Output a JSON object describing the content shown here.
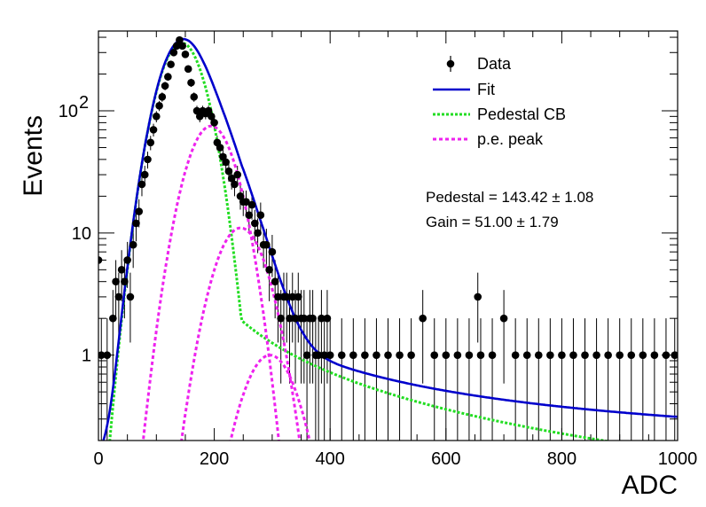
{
  "chart_data": {
    "type": "scatter",
    "xlabel": "ADC",
    "ylabel": "Events",
    "xlim": [
      0,
      1000
    ],
    "ylim": [
      0.2,
      450
    ],
    "yscale": "log",
    "x_ticks": [
      {
        "value": 0,
        "label": "0"
      },
      {
        "value": 200,
        "label": "200"
      },
      {
        "value": 400,
        "label": "400"
      },
      {
        "value": 600,
        "label": "600"
      },
      {
        "value": 800,
        "label": "800"
      },
      {
        "value": 1000,
        "label": "1000"
      }
    ],
    "y_ticks": [
      {
        "value": 1,
        "label": "1"
      },
      {
        "value": 10,
        "label": "10"
      },
      {
        "value": 100,
        "label": "10",
        "exponent": "2"
      }
    ],
    "legend_position": "top-right",
    "legend": [
      {
        "label": "Data",
        "key": "data"
      },
      {
        "label": "Fit",
        "key": "fit"
      },
      {
        "label": "Pedestal CB",
        "key": "pedestal"
      },
      {
        "label": "p.e. peak",
        "key": "pe"
      }
    ],
    "annotations": {
      "pedestal": "Pedestal = 143.42 ± 1.08",
      "gain": "Gain = 51.00 ± 1.79"
    },
    "colors": {
      "data": "#000000",
      "fit": "#0000cc",
      "pedestal": "#22dd22",
      "pe": "#ee22ee"
    },
    "data_points": {
      "x": [
        0,
        5,
        15,
        25,
        30,
        35,
        40,
        45,
        50,
        55,
        60,
        65,
        70,
        75,
        80,
        85,
        90,
        95,
        100,
        105,
        110,
        115,
        120,
        125,
        130,
        135,
        140,
        145,
        150,
        155,
        160,
        165,
        170,
        175,
        180,
        185,
        190,
        195,
        200,
        205,
        210,
        215,
        220,
        225,
        230,
        235,
        240,
        245,
        250,
        255,
        260,
        265,
        270,
        275,
        280,
        285,
        290,
        295,
        300,
        305,
        310,
        315,
        320,
        325,
        330,
        335,
        340,
        345,
        350,
        355,
        360,
        365,
        370,
        375,
        380,
        385,
        390,
        395,
        400,
        420,
        440,
        460,
        480,
        500,
        520,
        540,
        560,
        580,
        600,
        620,
        640,
        655,
        660,
        680,
        700,
        720,
        740,
        760,
        780,
        800,
        820,
        840,
        860,
        880,
        900,
        920,
        940,
        960,
        980,
        995
      ],
      "y": [
        6,
        1,
        1,
        2,
        4,
        3,
        5,
        4,
        6,
        3,
        8,
        12,
        15,
        25,
        30,
        40,
        55,
        70,
        90,
        110,
        130,
        160,
        190,
        240,
        300,
        340,
        380,
        340,
        290,
        220,
        170,
        130,
        100,
        90,
        100,
        95,
        100,
        90,
        80,
        55,
        50,
        42,
        38,
        32,
        28,
        25,
        30,
        20,
        18,
        18,
        14,
        17,
        12,
        10,
        14,
        8,
        8,
        5,
        7,
        4,
        3,
        2,
        3,
        3,
        2,
        3,
        2,
        3,
        2,
        2,
        1,
        2,
        2,
        1,
        1,
        2,
        1,
        2,
        1,
        1,
        1,
        1,
        1,
        1,
        1,
        1,
        2,
        1,
        1,
        1,
        1,
        3,
        1,
        1,
        2,
        1,
        1,
        1,
        1,
        1,
        1,
        1,
        1,
        1,
        1,
        1,
        1,
        1,
        1,
        1
      ]
    },
    "model": {
      "pedestal_mean": 143.42,
      "pedestal_amplitude": 360,
      "pedestal_sigma": 32,
      "pedestal_tail": 0.03,
      "gain": 51.0,
      "pe_peaks": [
        {
          "mean": 194.4,
          "amplitude": 75,
          "sigma": 34
        },
        {
          "mean": 245.4,
          "amplitude": 11,
          "sigma": 36
        },
        {
          "mean": 296.4,
          "amplitude": 1.0,
          "sigma": 38
        }
      ]
    }
  }
}
